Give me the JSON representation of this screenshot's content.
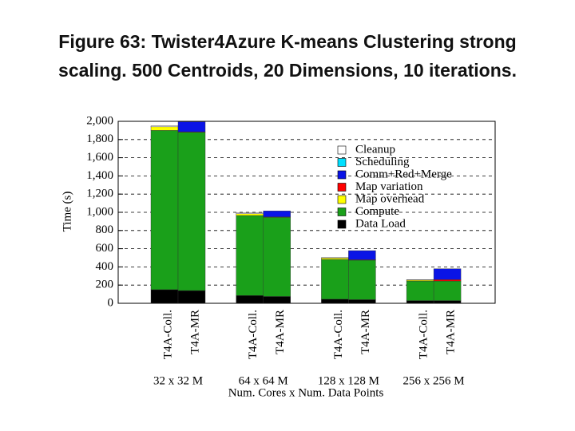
{
  "chart_data": {
    "type": "stacked-bar",
    "title": "Figure 63: Twister4Azure K-means Clustering strong scaling. 500 Centroids, 20 Dimensions, 10 iterations.",
    "x_label": "Num. Cores x Num. Data Points",
    "y_label": "Time (s)",
    "categories": [
      "T4A-Coll.",
      "T4A-MR",
      "T4A-Coll.",
      "T4A-MR",
      "T4A-Coll.",
      "T4A-MR",
      "T4A-Coll.",
      "T4A-MR"
    ],
    "groups": [
      "32 x 32 M",
      "64 x 64 M",
      "128 x 128 M",
      "256 x 256 M"
    ],
    "series": [
      {
        "name": "Data Load",
        "color": "#000000",
        "values": [
          150,
          140,
          85,
          75,
          45,
          40,
          30,
          30
        ]
      },
      {
        "name": "Compute",
        "color": "#1aa01a",
        "values": [
          1750,
          1740,
          880,
          870,
          437,
          434,
          215,
          215
        ]
      },
      {
        "name": "Map overhead",
        "color": "#ffff00",
        "values": [
          40,
          0,
          20,
          0,
          15,
          0,
          10,
          0
        ]
      },
      {
        "name": "Map variation",
        "color": "#ff0000",
        "values": [
          0,
          5,
          0,
          5,
          0,
          5,
          0,
          15
        ]
      },
      {
        "name": "Comm+Red+Merge",
        "color": "#0a14e6",
        "values": [
          0,
          110,
          0,
          65,
          0,
          100,
          0,
          120
        ]
      },
      {
        "name": "Scheduling",
        "color": "#00e0ff",
        "values": [
          0,
          0,
          0,
          0,
          0,
          0,
          0,
          0
        ]
      },
      {
        "name": "Cleanup",
        "color": "#ffffff",
        "values": [
          10,
          0,
          10,
          0,
          5,
          0,
          5,
          0
        ]
      }
    ],
    "ylim": [
      0,
      2000
    ],
    "yticks": [
      0,
      200,
      400,
      600,
      800,
      {
        "value": 1000,
        "label": "1,000"
      },
      {
        "value": 1200,
        "label": "1,200"
      },
      {
        "value": 1400,
        "label": "1,400"
      },
      {
        "value": 1600,
        "label": "1,600"
      },
      {
        "value": 1800,
        "label": "1,800"
      },
      {
        "value": 2000,
        "label": "2,000"
      }
    ],
    "grid": true
  }
}
